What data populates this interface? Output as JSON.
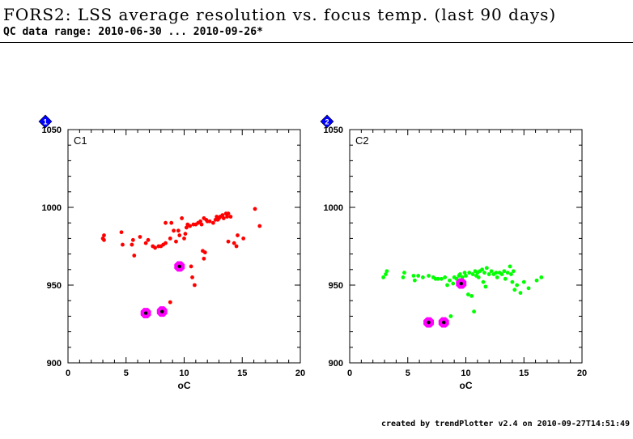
{
  "header": {
    "title": "FORS2: LSS average resolution vs. focus temp. (last 90 days)",
    "subtitle": "QC data range: 2010-06-30 ... 2010-09-26*"
  },
  "footer": {
    "text": "created by trendPlotter v2.4 on 2010-09-27T14:51:49"
  },
  "chart_data": [
    {
      "type": "scatter",
      "panel_label": "C1",
      "badge": "1",
      "xlabel": "oC",
      "ylabel": "",
      "xlim": [
        0,
        20
      ],
      "ylim": [
        900,
        1050
      ],
      "xticks": [
        "0",
        "5",
        "10",
        "15",
        "20"
      ],
      "yticks": [
        "900",
        "950",
        "1000",
        "1050"
      ],
      "grid": false,
      "color": "#ff0000",
      "highlight_color": "#ff00ff",
      "series": [
        {
          "values": [
            [
              3.0,
              980
            ],
            [
              3.1,
              982
            ],
            [
              3.1,
              979
            ],
            [
              4.6,
              984
            ],
            [
              4.7,
              976
            ],
            [
              5.5,
              976
            ],
            [
              5.6,
              979
            ],
            [
              5.7,
              969
            ],
            [
              6.2,
              981
            ],
            [
              6.7,
              977
            ],
            [
              6.9,
              979
            ],
            [
              7.3,
              975
            ],
            [
              7.5,
              974
            ],
            [
              7.8,
              975
            ],
            [
              8.0,
              975
            ],
            [
              8.2,
              976
            ],
            [
              8.4,
              977
            ],
            [
              8.4,
              990
            ],
            [
              8.8,
              980
            ],
            [
              8.9,
              990
            ],
            [
              9.1,
              985
            ],
            [
              9.3,
              978
            ],
            [
              9.5,
              985
            ],
            [
              9.6,
              982
            ],
            [
              9.8,
              993
            ],
            [
              10.0,
              980
            ],
            [
              10.1,
              983
            ],
            [
              10.2,
              987
            ],
            [
              10.3,
              989
            ],
            [
              10.5,
              988
            ],
            [
              10.6,
              962
            ],
            [
              10.7,
              955
            ],
            [
              10.8,
              989
            ],
            [
              10.9,
              950
            ],
            [
              11.0,
              989
            ],
            [
              11.2,
              990
            ],
            [
              11.4,
              991
            ],
            [
              11.5,
              989
            ],
            [
              11.6,
              972
            ],
            [
              11.7,
              993
            ],
            [
              11.7,
              967
            ],
            [
              11.8,
              971
            ],
            [
              11.9,
              992
            ],
            [
              12.0,
              991
            ],
            [
              12.2,
              991
            ],
            [
              12.5,
              990
            ],
            [
              12.7,
              992
            ],
            [
              12.8,
              994
            ],
            [
              12.9,
              992
            ],
            [
              13.0,
              993
            ],
            [
              13.1,
              994
            ],
            [
              13.3,
              995
            ],
            [
              13.4,
              993
            ],
            [
              13.6,
              996
            ],
            [
              13.7,
              994
            ],
            [
              13.8,
              996
            ],
            [
              13.8,
              978
            ],
            [
              14.0,
              994
            ],
            [
              14.3,
              977
            ],
            [
              14.5,
              975
            ],
            [
              14.6,
              982
            ],
            [
              15.1,
              980
            ],
            [
              16.1,
              999
            ],
            [
              16.5,
              988
            ],
            [
              8.8,
              939
            ]
          ]
        }
      ],
      "highlighted": [
        [
          6.7,
          932
        ],
        [
          8.1,
          933
        ],
        [
          9.6,
          962
        ]
      ]
    },
    {
      "type": "scatter",
      "panel_label": "C2",
      "badge": "2",
      "xlabel": "oC",
      "ylabel": "",
      "xlim": [
        0,
        20
      ],
      "ylim": [
        900,
        1050
      ],
      "xticks": [
        "0",
        "5",
        "10",
        "15",
        "20"
      ],
      "yticks": [
        "900",
        "950",
        "1000",
        "1050"
      ],
      "grid": false,
      "color": "#00ff00",
      "highlight_color": "#ff00ff",
      "series": [
        {
          "values": [
            [
              2.9,
              955
            ],
            [
              3.1,
              957
            ],
            [
              3.2,
              959
            ],
            [
              4.6,
              955
            ],
            [
              4.7,
              958
            ],
            [
              5.5,
              956
            ],
            [
              5.6,
              953
            ],
            [
              5.9,
              956
            ],
            [
              6.3,
              955
            ],
            [
              6.8,
              956
            ],
            [
              7.2,
              955
            ],
            [
              7.4,
              954
            ],
            [
              7.6,
              954
            ],
            [
              7.9,
              954
            ],
            [
              8.2,
              955
            ],
            [
              8.4,
              950
            ],
            [
              8.6,
              953
            ],
            [
              8.7,
              930
            ],
            [
              8.9,
              951
            ],
            [
              9.0,
              955
            ],
            [
              9.2,
              954
            ],
            [
              9.4,
              956
            ],
            [
              9.5,
              957
            ],
            [
              9.7,
              955
            ],
            [
              9.9,
              958
            ],
            [
              10.0,
              956
            ],
            [
              10.2,
              944
            ],
            [
              10.3,
              958
            ],
            [
              10.5,
              943
            ],
            [
              10.6,
              957
            ],
            [
              10.7,
              933
            ],
            [
              10.8,
              959
            ],
            [
              10.9,
              956
            ],
            [
              11.0,
              958
            ],
            [
              11.1,
              955
            ],
            [
              11.2,
              959
            ],
            [
              11.4,
              960
            ],
            [
              11.5,
              952
            ],
            [
              11.6,
              958
            ],
            [
              11.7,
              949
            ],
            [
              11.8,
              961
            ],
            [
              12.0,
              957
            ],
            [
              12.2,
              959
            ],
            [
              12.4,
              957
            ],
            [
              12.6,
              958
            ],
            [
              12.7,
              955
            ],
            [
              12.9,
              958
            ],
            [
              13.1,
              957
            ],
            [
              13.3,
              959
            ],
            [
              13.4,
              954
            ],
            [
              13.6,
              958
            ],
            [
              13.8,
              962
            ],
            [
              14.0,
              952
            ],
            [
              14.1,
              959
            ],
            [
              14.2,
              947
            ],
            [
              14.4,
              950
            ],
            [
              14.7,
              945
            ],
            [
              15.0,
              952
            ],
            [
              15.4,
              948
            ],
            [
              16.1,
              953
            ],
            [
              16.5,
              955
            ],
            [
              13.9,
              957
            ]
          ]
        }
      ],
      "highlighted": [
        [
          6.8,
          926
        ],
        [
          8.1,
          926
        ],
        [
          9.6,
          951
        ]
      ]
    }
  ]
}
